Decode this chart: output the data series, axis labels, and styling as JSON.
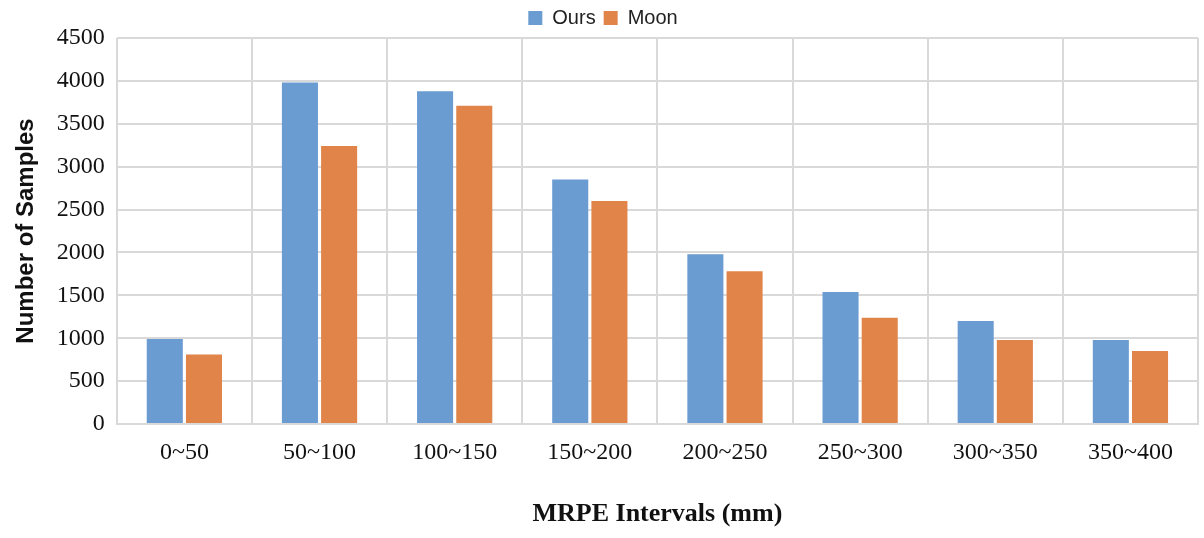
{
  "chart_data": {
    "type": "bar",
    "xlabel": "MRPE Intervals (mm)",
    "ylabel": "Number of Samples",
    "categories": [
      "0~50",
      "50~100",
      "100~150",
      "150~200",
      "200~250",
      "250~300",
      "300~350",
      "350~400"
    ],
    "series": [
      {
        "name": "Ours",
        "color": "#6a9bd1",
        "values": [
          990,
          3980,
          3880,
          2850,
          1980,
          1540,
          1200,
          980
        ]
      },
      {
        "name": "Moon",
        "color": "#e0844a",
        "values": [
          810,
          3240,
          3710,
          2600,
          1780,
          1240,
          980,
          850
        ]
      }
    ],
    "ylim": [
      0,
      4500
    ],
    "yticks": [
      0,
      500,
      1000,
      1500,
      2000,
      2500,
      3000,
      3500,
      4000,
      4500
    ],
    "grid": true,
    "legend": "top"
  }
}
